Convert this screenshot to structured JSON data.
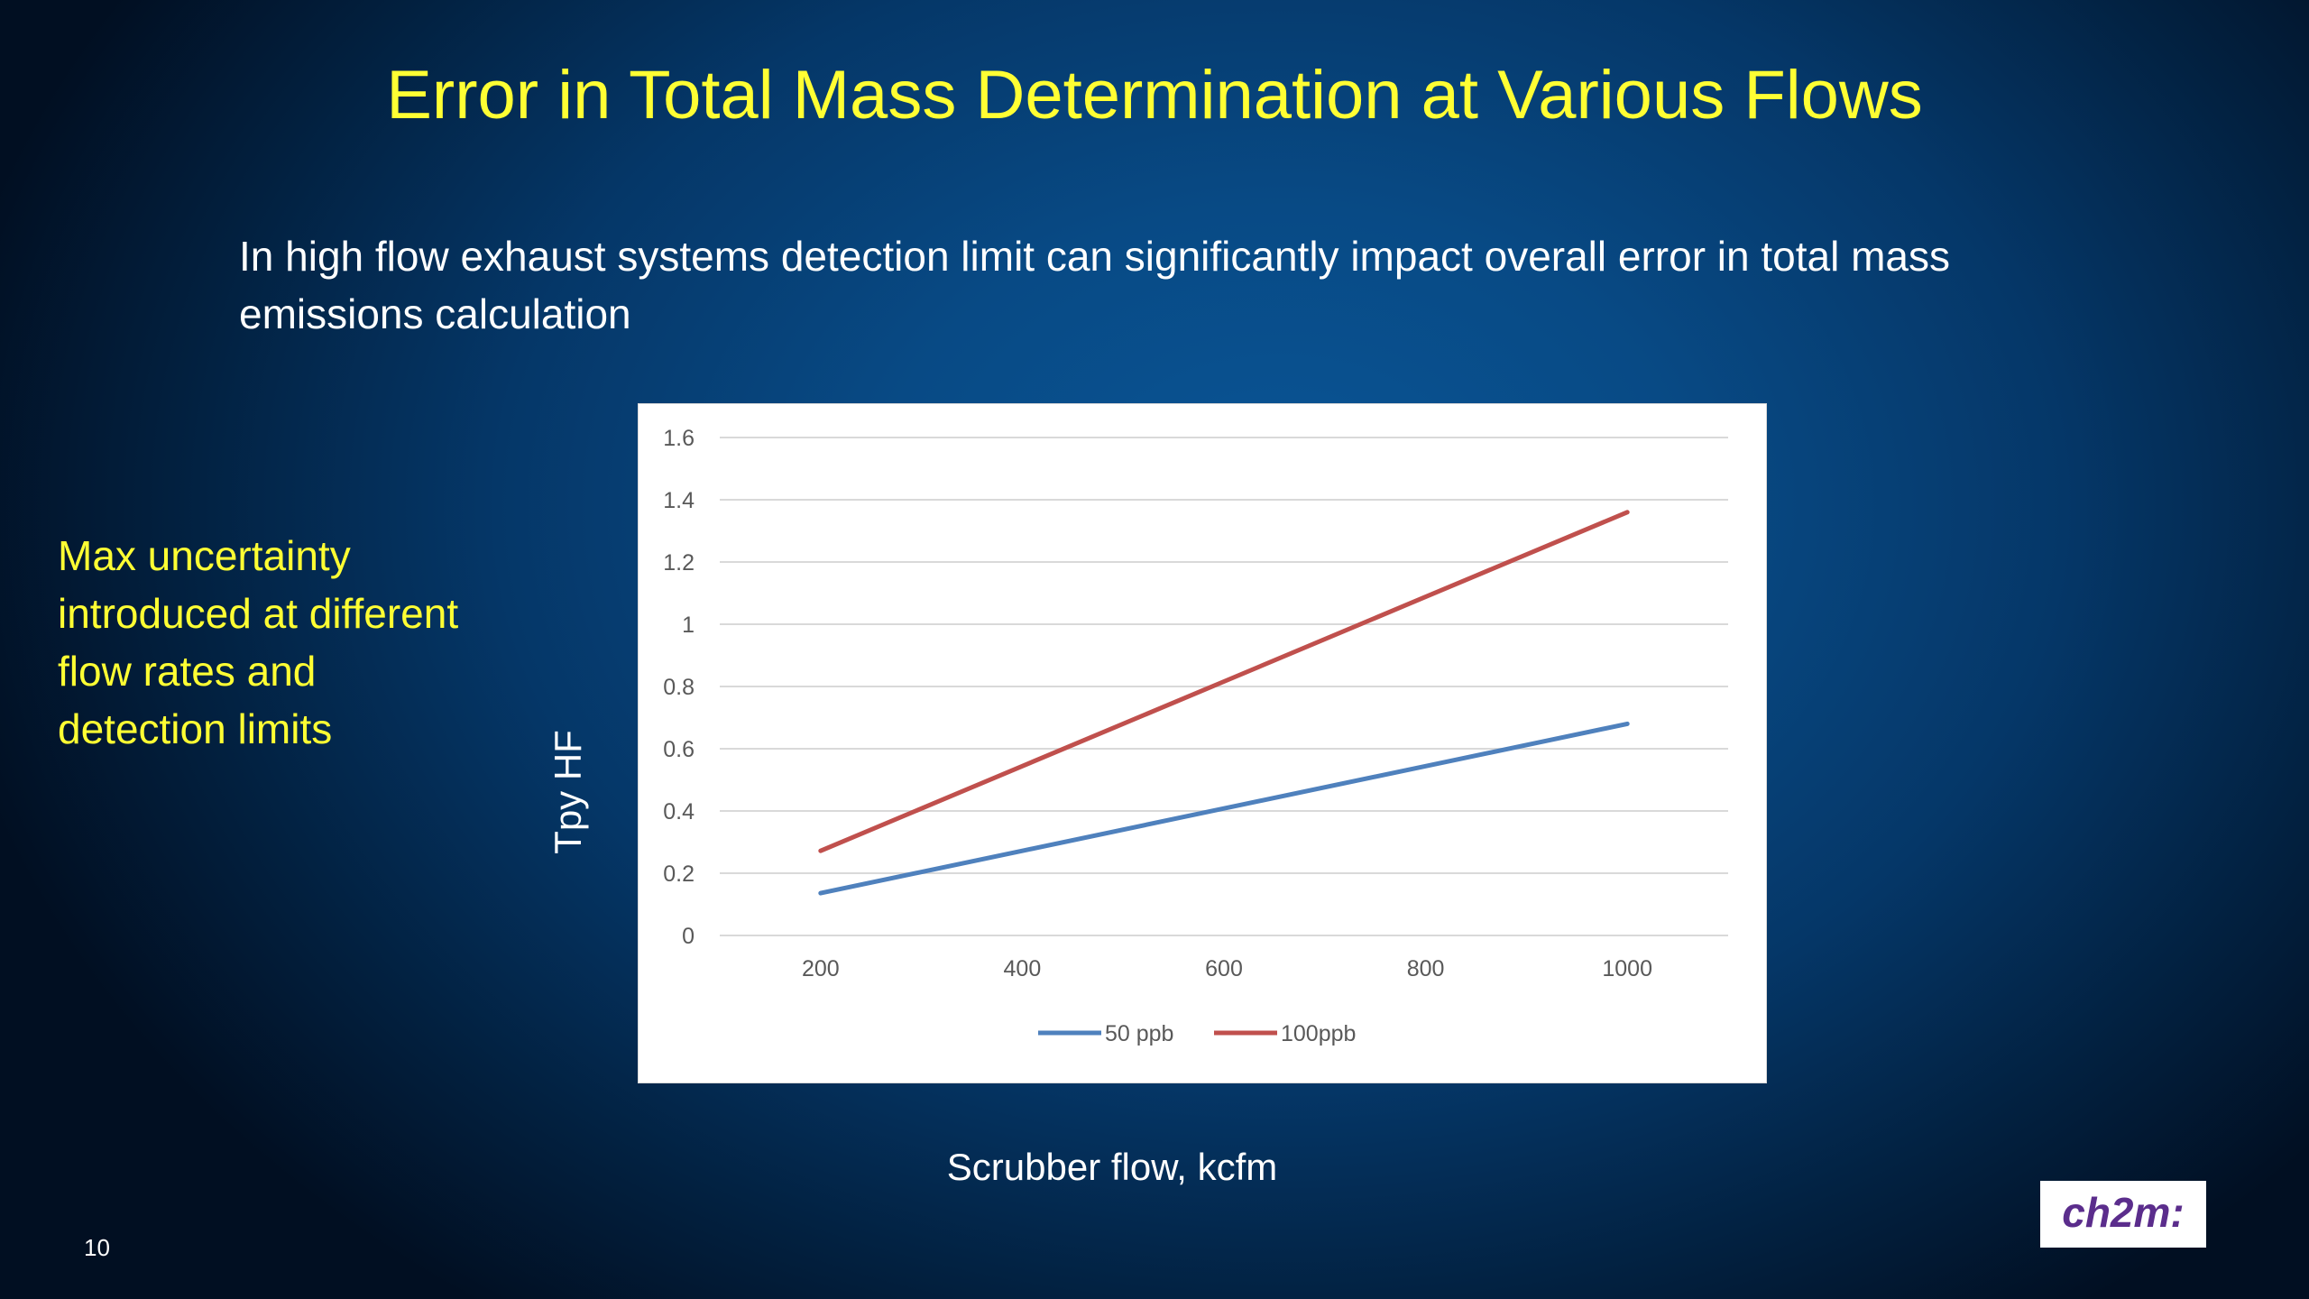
{
  "slide": {
    "title": "Error in Total Mass Determination at Various Flows",
    "subtitle": "In high flow exhaust systems detection limit can significantly impact overall error in total mass emissions calculation",
    "side_note": "Max uncertainty introduced at different flow rates and detection limits",
    "page_number": "10",
    "logo_text": "ch2m:"
  },
  "chart_data": {
    "type": "line",
    "title": "",
    "xlabel": "Scrubber flow, kcfm",
    "ylabel": "Tpy HF",
    "categories": [
      "200",
      "400",
      "600",
      "800",
      "1000"
    ],
    "ylim": [
      0,
      1.6
    ],
    "yticks": [
      "0",
      "0.2",
      "0.4",
      "0.6",
      "0.8",
      "1",
      "1.2",
      "1.4",
      "1.6"
    ],
    "grid": true,
    "legend_position": "bottom",
    "series": [
      {
        "name": "50 ppb",
        "color": "#4f81bd",
        "values": [
          0.136,
          0.272,
          0.408,
          0.544,
          0.68
        ]
      },
      {
        "name": "100ppb",
        "color": "#c0504d",
        "values": [
          0.272,
          0.544,
          0.816,
          1.088,
          1.36
        ]
      }
    ]
  },
  "colors": {
    "title": "#ffff33",
    "text": "#ffffff",
    "background": "#084a85"
  }
}
